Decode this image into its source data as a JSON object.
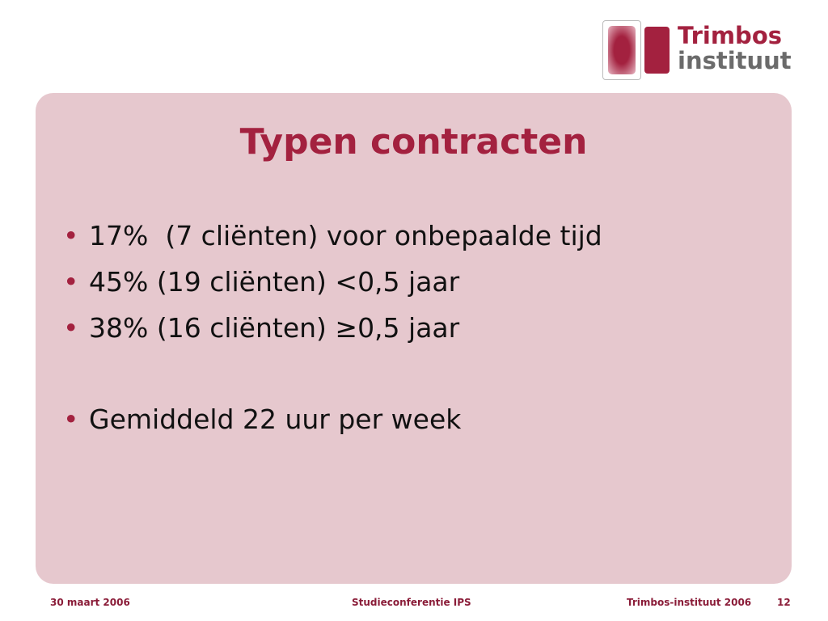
{
  "logo": {
    "line1": "Trimbos",
    "line2": "instituut"
  },
  "slide": {
    "title": "Typen contracten",
    "bullets": [
      "17%  (7 cliënten) voor onbepaalde tijd",
      "45% (19 cliënten) <0,5 jaar",
      "38% (16 cliënten) ≥0,5 jaar",
      "Gemiddeld 22 uur per week"
    ]
  },
  "footer": {
    "date": "30 maart 2006",
    "event": "Studieconferentie IPS",
    "organization": "Trimbos-instituut 2006",
    "page": "12"
  }
}
